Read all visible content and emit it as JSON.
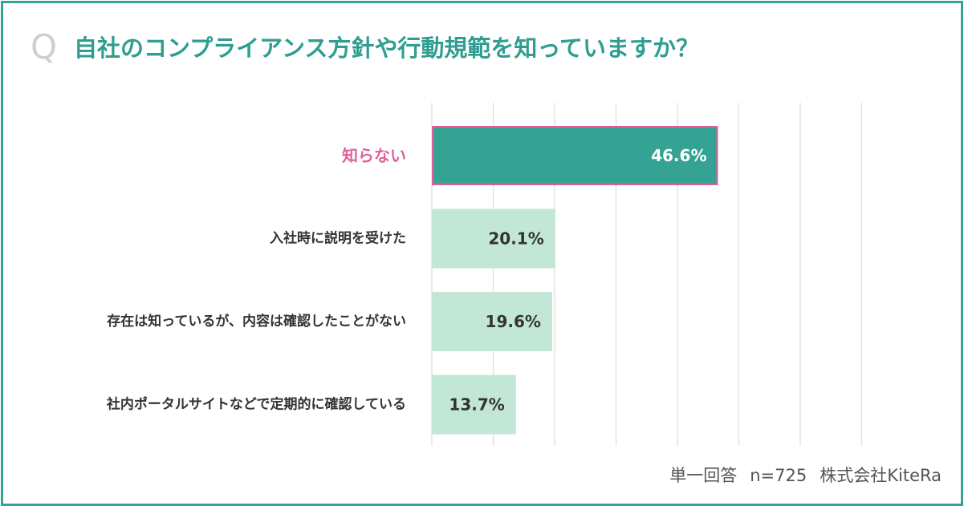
{
  "header": {
    "q_mark": "Q",
    "title": "自社のコンプライアンス方針や行動規範を知っていますか？"
  },
  "footer": {
    "answer_type": "単一回答",
    "sample": "n=725",
    "source": "株式会社KiteRa"
  },
  "colors": {
    "frame": "#35a394",
    "highlight_bar": "#35a394",
    "highlight_border": "#e0609a",
    "highlight_label": "#e0609a",
    "bar": "#c3e7d6",
    "grid": "#dddddd",
    "label": "#333333",
    "value_highlight": "#ffffff",
    "value": "#333333"
  },
  "chart_data": {
    "type": "bar",
    "orientation": "horizontal",
    "categories": [
      "知らない",
      "入社時に説明を受けた",
      "存在は知っているが、内容は確認したことがない",
      "社内ポータルサイトなどで定期的に確認している"
    ],
    "values": [
      46.6,
      20.1,
      19.6,
      13.7
    ],
    "value_labels": [
      "46.6%",
      "20.1%",
      "19.6%",
      "13.7%"
    ],
    "highlight_index": 0,
    "xlim": [
      0,
      70
    ],
    "grid": true,
    "grid_step": 10
  }
}
